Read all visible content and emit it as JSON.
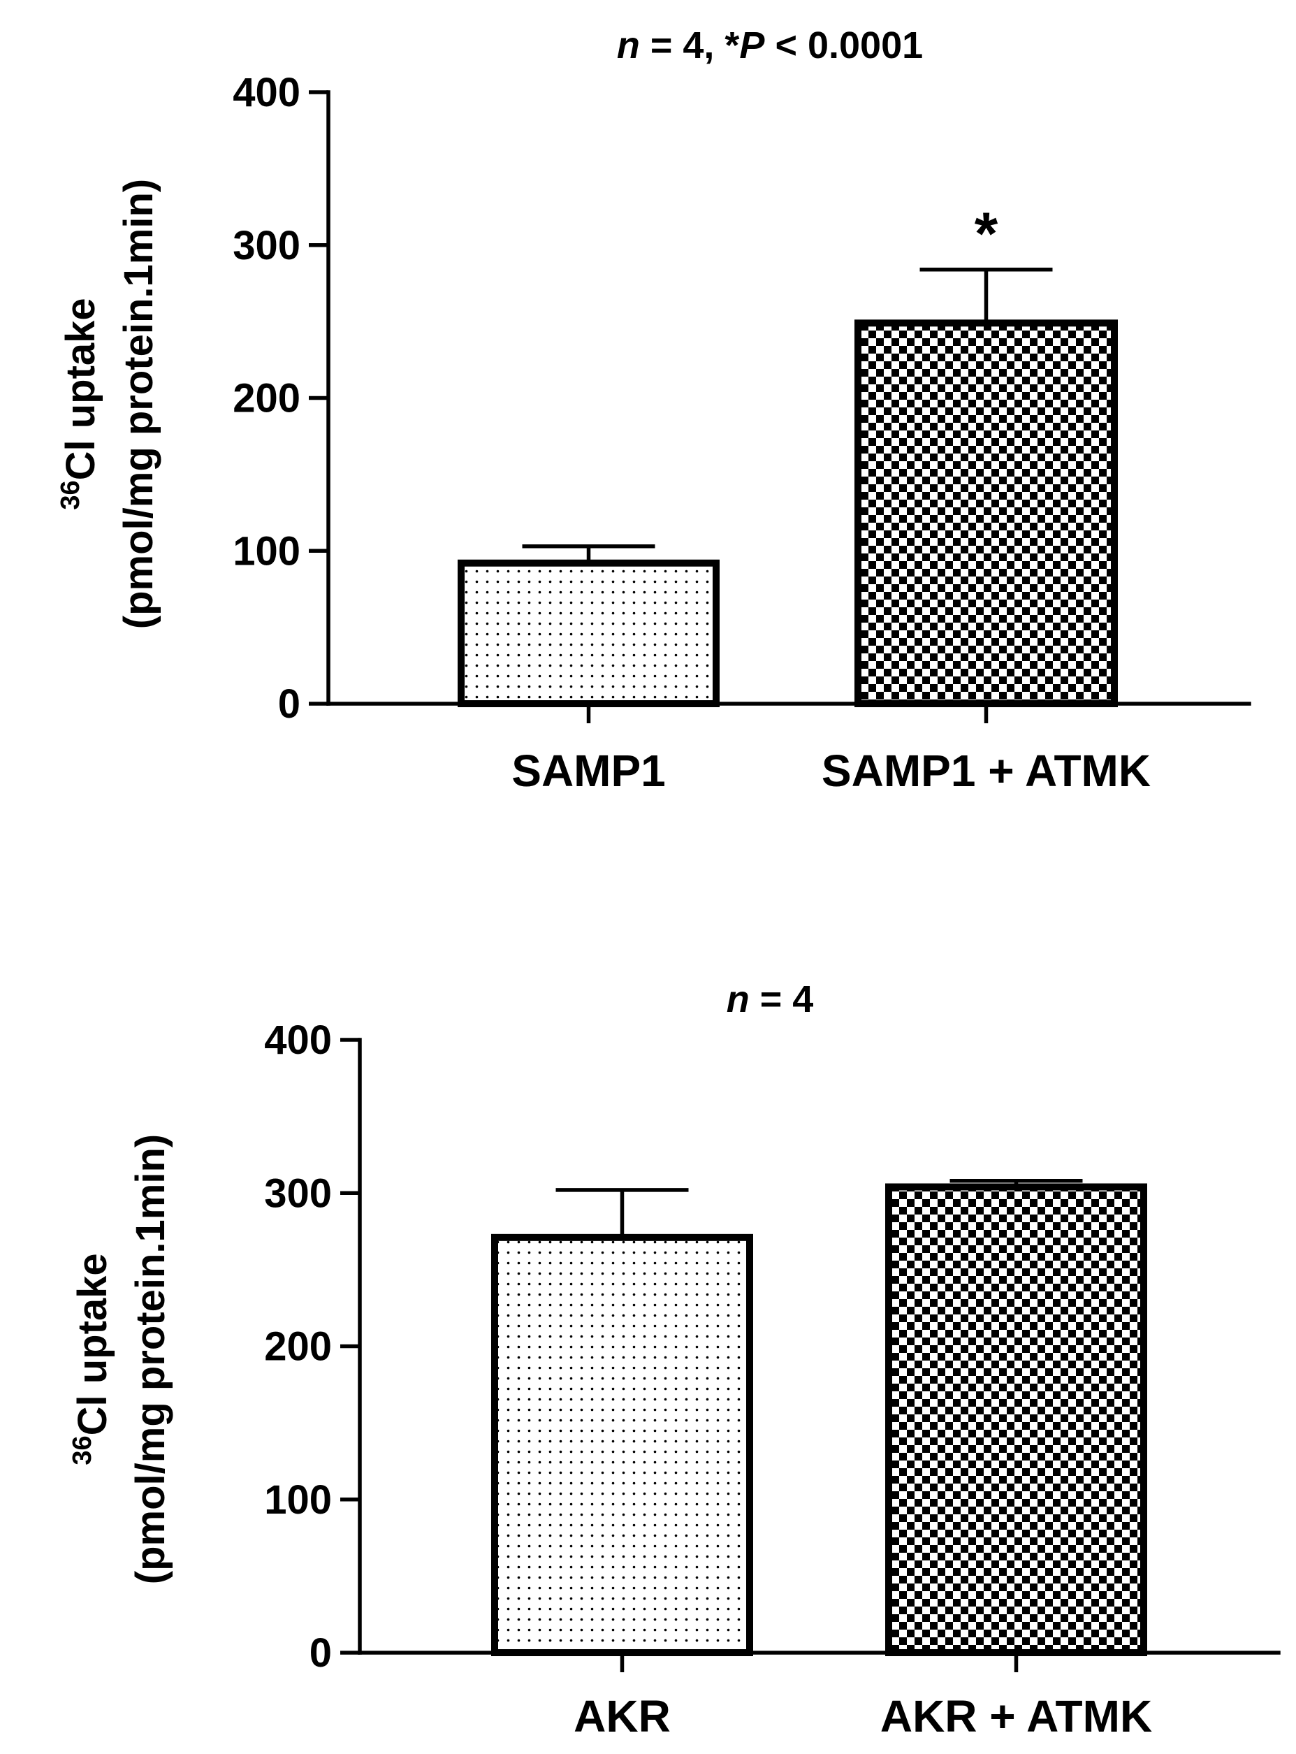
{
  "patterns": {
    "dots": "dotted",
    "checker": "checkerboard"
  },
  "chart_data": [
    {
      "type": "bar",
      "title": {
        "n_italic": "n",
        "n_rest": " = 4, *",
        "p_italic": "P",
        "p_rest": " < 0.0001"
      },
      "ylabel": {
        "superscript": "36",
        "line1": "Cl uptake",
        "line2": "(pmol/mg protein.1min)"
      },
      "ylim": [
        0,
        400
      ],
      "yticks": [
        "0",
        "100",
        "200",
        "300",
        "400"
      ],
      "categories": [
        "SAMP1",
        "SAMP1 + ATMK"
      ],
      "values": [
        92,
        249
      ],
      "errors": [
        11,
        35
      ],
      "patterns": [
        "dots",
        "checker"
      ],
      "annotations": [
        "",
        "*"
      ],
      "grid": false,
      "legend": "none"
    },
    {
      "type": "bar",
      "title": {
        "n_italic": "n",
        "n_rest": " = 4"
      },
      "ylabel": {
        "superscript": "36",
        "line1": "Cl uptake",
        "line2": "(pmol/mg protein.1min)"
      },
      "ylim": [
        0,
        400
      ],
      "yticks": [
        "0",
        "100",
        "200",
        "300",
        "400"
      ],
      "categories": [
        "AKR",
        "AKR + ATMK"
      ],
      "values": [
        271,
        304
      ],
      "errors": [
        31,
        4
      ],
      "patterns": [
        "dots",
        "checker"
      ],
      "annotations": [
        "",
        ""
      ],
      "grid": false,
      "legend": "none"
    }
  ]
}
